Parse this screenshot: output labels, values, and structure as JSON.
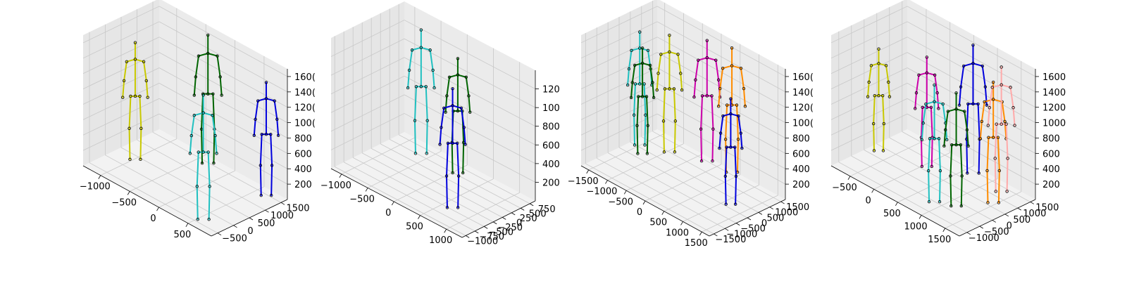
{
  "figure": {
    "background": "#ffffff",
    "pane_color": "#f2f2f2",
    "grid_color": "#c8c8c8",
    "description_layout": "four 3D scatter/skeleton subplots side by side"
  },
  "chart_data": [
    {
      "type": "scatter",
      "projection": "3d",
      "grid": true,
      "x_ticks": [
        "−1000",
        "−500",
        "0",
        "500"
      ],
      "y_ticks": [
        "−500",
        "0",
        "500",
        "1000",
        "1500"
      ],
      "z_ticks": [
        "200",
        "400",
        "600",
        "800",
        "1000",
        "1200",
        "1400",
        "1600"
      ],
      "z_tick_display": [
        "200",
        "400",
        "600",
        "800",
        "100(",
        "120(",
        "140(",
        "160("
      ],
      "xlim": [
        -1300,
        900
      ],
      "ylim": [
        -700,
        1700
      ],
      "zlim": [
        0,
        1700
      ],
      "skeletons": [
        {
          "color": "#c8c800",
          "x": -950,
          "y": 300,
          "height": 1550
        },
        {
          "color": "#006400",
          "x": -300,
          "y": 1400,
          "height": 1700
        },
        {
          "color": "#0000dd",
          "x": 700,
          "y": 1400,
          "height": 1500
        },
        {
          "color": "#20c0c0",
          "x": 600,
          "y": -400,
          "height": 1650
        }
      ]
    },
    {
      "type": "scatter",
      "projection": "3d",
      "grid": true,
      "x_ticks": [
        "−1000",
        "−500",
        "0",
        "500",
        "1000"
      ],
      "y_ticks": [
        "−1000",
        "−750",
        "−500",
        "−250",
        "0",
        "250",
        "500",
        "750"
      ],
      "z_ticks": [
        "200",
        "400",
        "600",
        "800",
        "1000",
        "1200"
      ],
      "z_tick_display": [
        "200",
        "400",
        "600",
        "800",
        "100",
        "120"
      ],
      "xlim": [
        -1200,
        1300
      ],
      "ylim": [
        -1100,
        900
      ],
      "zlim": [
        0,
        1400
      ],
      "skeletons": [
        {
          "color": "#20c0c0",
          "x": -600,
          "y": 500,
          "height": 1350
        },
        {
          "color": "#006400",
          "x": 100,
          "y": 500,
          "height": 1250
        },
        {
          "color": "#0000dd",
          "x": 700,
          "y": -500,
          "height": 1300
        }
      ]
    },
    {
      "type": "scatter",
      "projection": "3d",
      "grid": true,
      "x_ticks": [
        "−1500",
        "−1000",
        "−500",
        "0",
        "500",
        "1000",
        "1500"
      ],
      "y_ticks": [
        "−1500",
        "−1000",
        "−500",
        "0",
        "500",
        "1000",
        "1500"
      ],
      "z_ticks": [
        "200",
        "400",
        "600",
        "800",
        "1000",
        "1200",
        "1400",
        "1600"
      ],
      "z_tick_display": [
        "200",
        "400",
        "600",
        "800",
        "100(",
        "120(",
        "140(",
        "160("
      ],
      "xlim": [
        -1700,
        1700
      ],
      "ylim": [
        -1700,
        1700
      ],
      "zlim": [
        0,
        1700
      ],
      "skeletons": [
        {
          "color": "#20c0c0",
          "x": -1450,
          "y": 500,
          "height": 1500
        },
        {
          "color": "#006400",
          "x": -1200,
          "y": 200,
          "height": 1400
        },
        {
          "color": "#c8c800",
          "x": -900,
          "y": 900,
          "height": 1550
        },
        {
          "color": "#cc00aa",
          "x": -200,
          "y": 1400,
          "height": 1600
        },
        {
          "color": "#ff8c00",
          "x": 400,
          "y": 1500,
          "height": 1650
        },
        {
          "color": "#0000dd",
          "x": 1200,
          "y": 100,
          "height": 1400
        }
      ]
    },
    {
      "type": "scatter",
      "projection": "3d",
      "grid": true,
      "x_ticks": [
        "−500",
        "0",
        "500",
        "1000",
        "1500"
      ],
      "y_ticks": [
        "−1000",
        "−500",
        "0",
        "500",
        "1000",
        "1500"
      ],
      "z_ticks": [
        "200",
        "400",
        "600",
        "800",
        "1000",
        "1200",
        "1400",
        "1600"
      ],
      "z_tick_display": [
        "200",
        "400",
        "600",
        "800",
        "1000",
        "1200",
        "1400",
        "1600"
      ],
      "xlim": [
        -900,
        1800
      ],
      "ylim": [
        -1300,
        1700
      ],
      "zlim": [
        0,
        1700
      ],
      "skeletons": [
        {
          "color": "#c8c800",
          "x": -700,
          "y": 200,
          "height": 1350
        },
        {
          "color": "#cc00aa",
          "x": 100,
          "y": 600,
          "height": 1450
        },
        {
          "color": "#20c0c0",
          "x": 900,
          "y": -600,
          "height": 1550
        },
        {
          "color": "#0000dd",
          "x": 700,
          "y": 1300,
          "height": 1700
        },
        {
          "color": "#006400",
          "x": 1200,
          "y": -300,
          "height": 1500
        },
        {
          "color": "#ff8c00",
          "x": 1500,
          "y": 600,
          "height": 1600
        },
        {
          "color": "#ffaaaa",
          "x": 1350,
          "y": 1200,
          "height": 1650
        }
      ]
    }
  ]
}
